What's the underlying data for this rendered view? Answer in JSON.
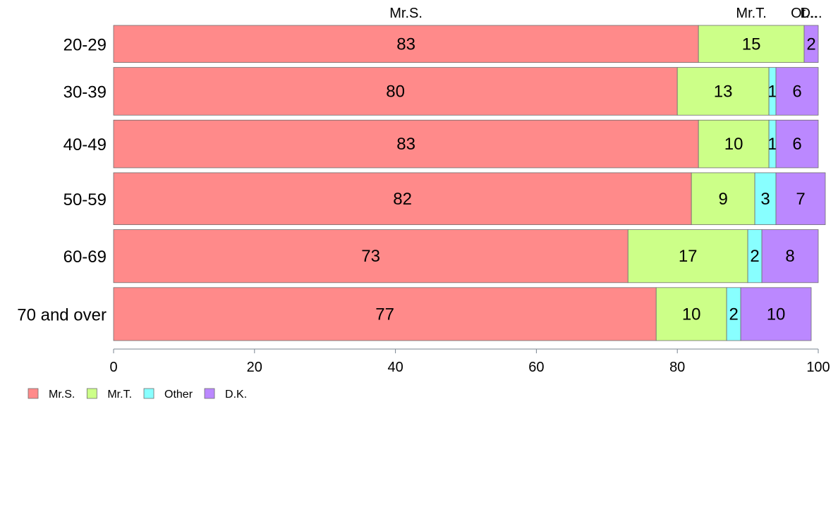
{
  "chart_data": {
    "type": "bar",
    "orientation": "horizontal",
    "stacked": "percent",
    "categories": [
      "20-29",
      "30-39",
      "40-49",
      "50-59",
      "60-69",
      "70 and over"
    ],
    "series": [
      {
        "name": "Mr.S.",
        "color": "#ff8a8a",
        "values": [
          83,
          80,
          83,
          82,
          73,
          77
        ]
      },
      {
        "name": "Mr.T.",
        "color": "#ccff88",
        "values": [
          15,
          13,
          10,
          9,
          17,
          10
        ]
      },
      {
        "name": "Other",
        "color": "#88ffff",
        "values": [
          0,
          1,
          1,
          3,
          2,
          2
        ]
      },
      {
        "name": "D.K.",
        "color": "#bb88ff",
        "values": [
          2,
          6,
          6,
          7,
          8,
          10
        ]
      }
    ],
    "top_labels": [
      "Mr.S.",
      "Mr.T.",
      "Ot...",
      "D..."
    ],
    "xlim": [
      0,
      100
    ],
    "xticks": [
      0,
      20,
      40,
      60,
      80,
      100
    ],
    "bar_widths_relative": [
      0.7,
      0.9,
      0.9,
      0.98,
      1.0,
      1.0
    ],
    "legend_position": "bottom-left",
    "grid": false
  }
}
